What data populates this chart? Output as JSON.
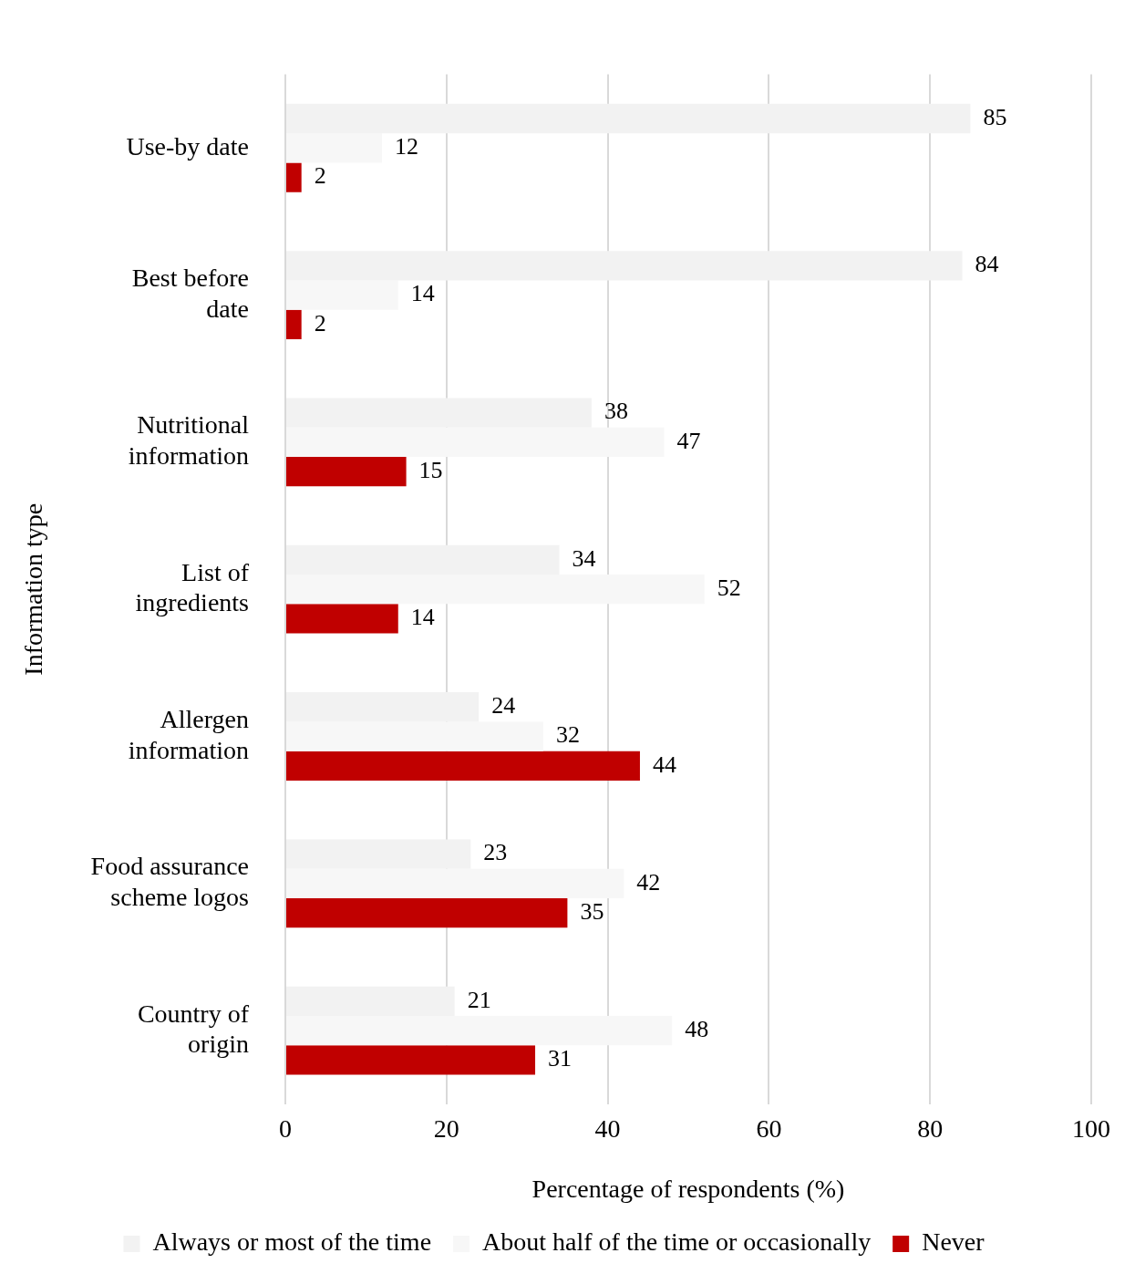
{
  "chart_data": {
    "type": "bar",
    "orientation": "horizontal",
    "xlabel": "Percentage of respondents (%)",
    "ylabel": "Information type",
    "categories": [
      "Use-by date",
      "Best before date",
      "Nutritional information",
      "List of ingredients",
      "Allergen information",
      "Food assurance scheme logos",
      "Country of origin"
    ],
    "series": [
      {
        "name": "Always or most of the time",
        "color": "#f2f2f2",
        "values": [
          85,
          84,
          38,
          34,
          24,
          23,
          21
        ]
      },
      {
        "name": "About half of the time or occasionally",
        "color": "#f7f7f7",
        "values": [
          12,
          14,
          47,
          52,
          32,
          42,
          48
        ]
      },
      {
        "name": "Never",
        "color": "#c00000",
        "values": [
          2,
          2,
          15,
          14,
          44,
          35,
          31
        ]
      }
    ],
    "xlim": [
      0,
      100
    ],
    "xticks": [
      0,
      20,
      40,
      60,
      80,
      100
    ],
    "grid": "x",
    "legend": "bottom",
    "data_labels": true
  }
}
